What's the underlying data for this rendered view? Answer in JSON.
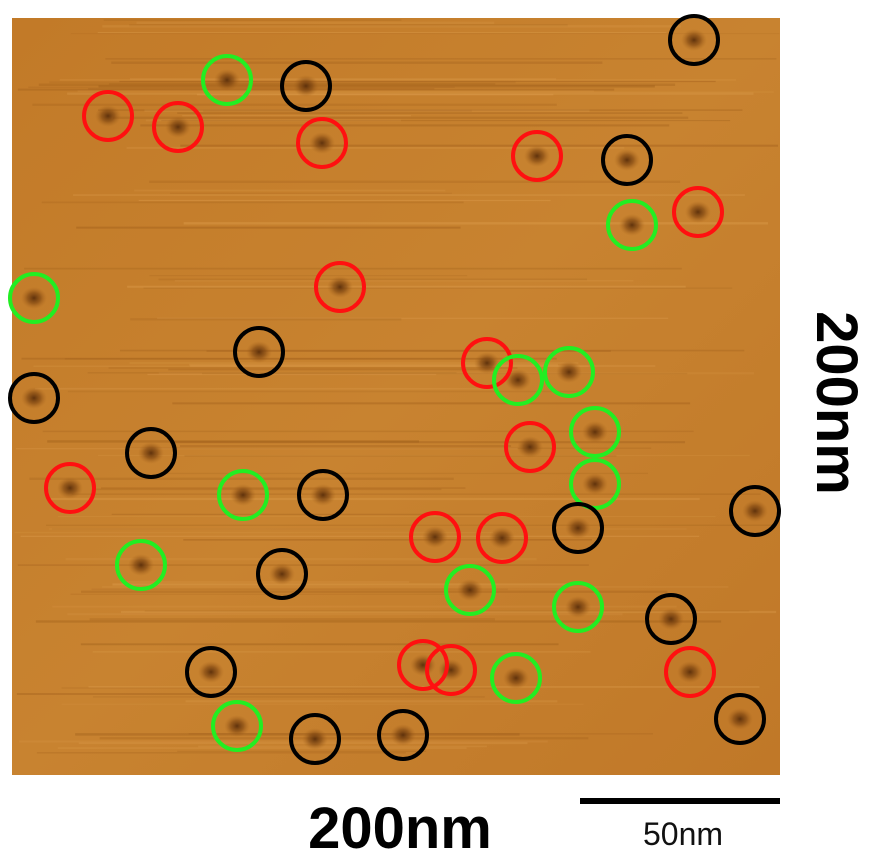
{
  "labels": {
    "scale_vertical": "200nm",
    "scale_horizontal": "200nm",
    "scale_bar": "50nm"
  }
}
